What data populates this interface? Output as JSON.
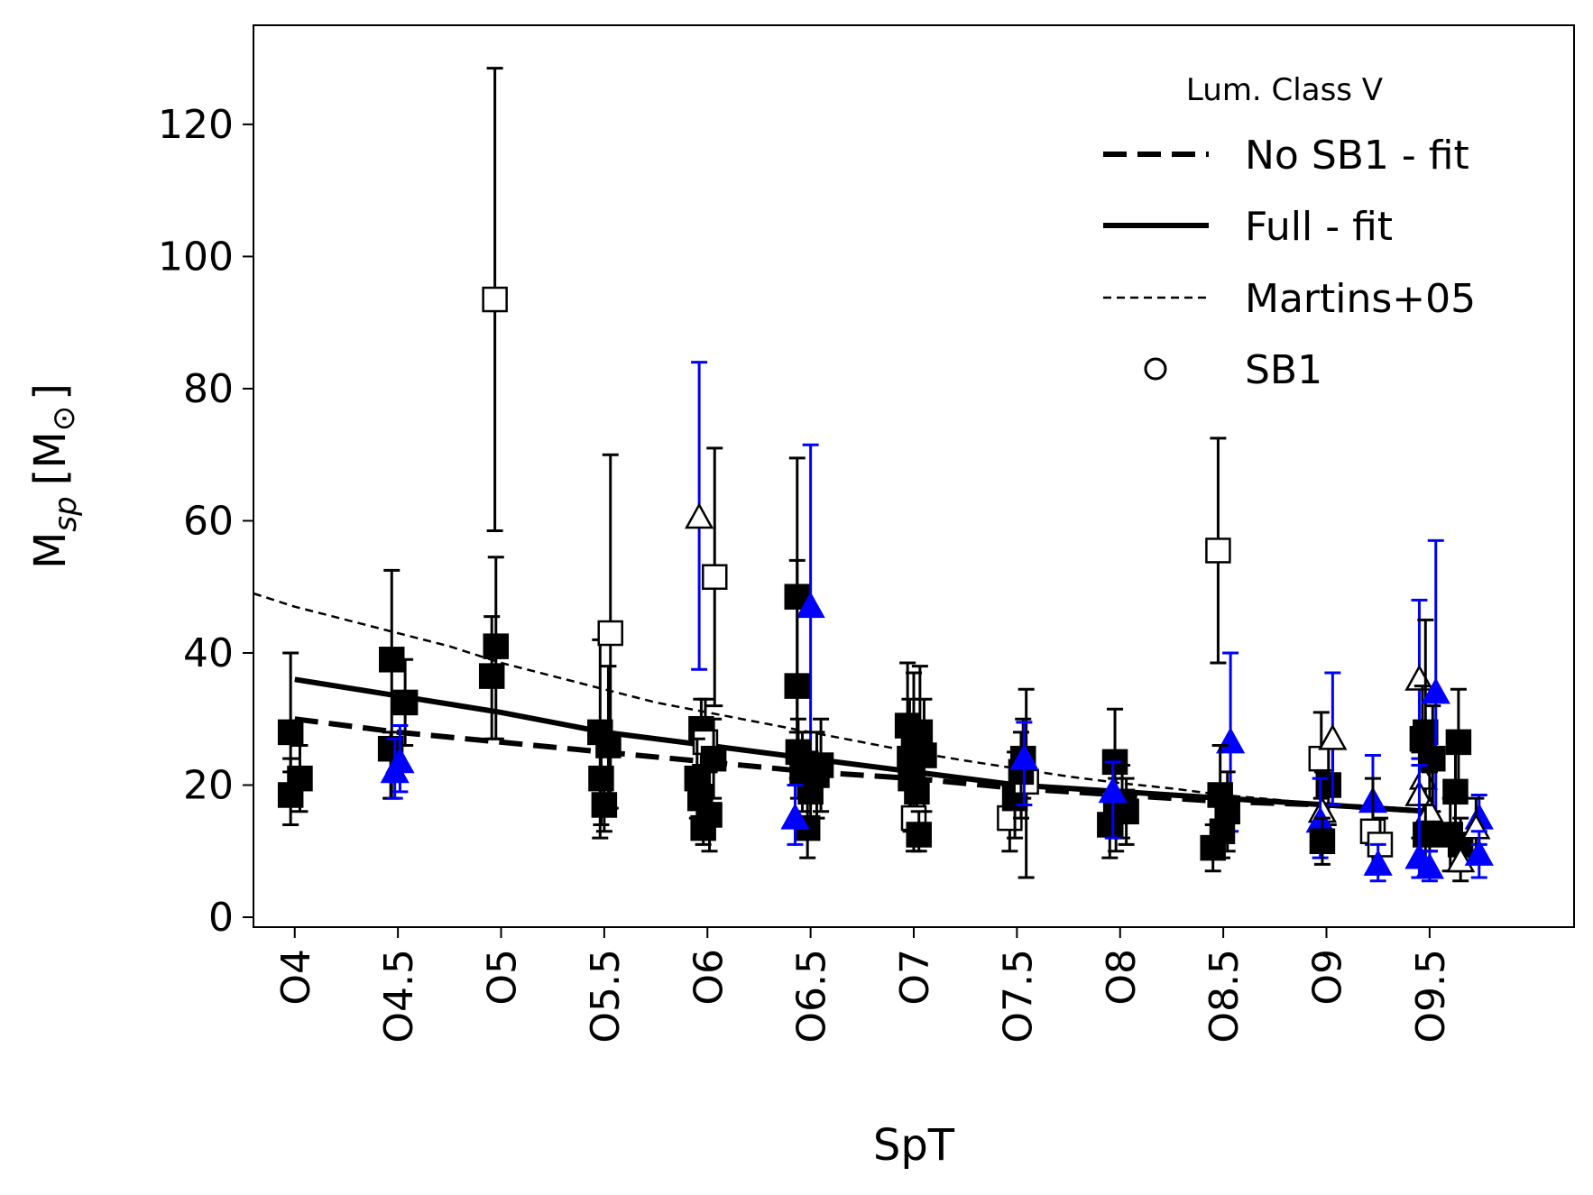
{
  "chart_data": {
    "type": "scatter",
    "xlabel": "SpT",
    "ylabel_main": "M",
    "ylabel_sub": "sp",
    "ylabel_unit_open": "[M",
    "ylabel_unit_sym": "⊙",
    "ylabel_unit_close": "]",
    "xlim": [
      -0.4,
      12.4
    ],
    "ylim": [
      -1.5,
      135
    ],
    "yticks": [
      0,
      20,
      40,
      60,
      80,
      100,
      120
    ],
    "ytick_labels": [
      "0",
      "20",
      "40",
      "60",
      "80",
      "100",
      "120"
    ],
    "xticks": [
      0,
      1,
      2,
      3,
      4,
      5,
      6,
      7,
      8,
      9,
      10,
      11
    ],
    "xtick_labels": [
      "O4",
      "O4.5",
      "O5",
      "O5.5",
      "O6",
      "O6.5",
      "O7",
      "O7.5",
      "O8",
      "O8.5",
      "O9",
      "O9.5"
    ],
    "legend": {
      "title": "Lum. Class V",
      "position": "upper right",
      "entries": [
        {
          "label": "No SB1 - fit",
          "style": "thick-dashed"
        },
        {
          "label": "Full - fit",
          "style": "thick-solid"
        },
        {
          "label": "Martins+05",
          "style": "thin-dashed"
        },
        {
          "label": "SB1",
          "style": "circle-marker"
        }
      ]
    },
    "colors": {
      "black": "#000000",
      "blue": "#0000ff",
      "white": "#ffffff"
    },
    "lines": [
      {
        "name": "No SB1 - fit",
        "style": "thick-dashed",
        "x": [
          0,
          1,
          2,
          3,
          4,
          5,
          6,
          7,
          8,
          9,
          10,
          11
        ],
        "y": [
          30,
          28,
          26.5,
          25,
          23.5,
          22,
          21,
          19.5,
          18.5,
          17.5,
          17,
          16
        ]
      },
      {
        "name": "Full - fit",
        "style": "thick-solid",
        "x": [
          0,
          1,
          2,
          3,
          4,
          5,
          6,
          7,
          8,
          9,
          10,
          11
        ],
        "y": [
          36,
          33.5,
          31,
          28,
          26,
          24,
          22,
          20,
          19,
          18,
          17,
          16
        ]
      },
      {
        "name": "Martins+05",
        "style": "thin-dashed",
        "x": [
          -0.4,
          0,
          0.5,
          1,
          1.5,
          2,
          2.5,
          3,
          3.5,
          4,
          4.5,
          5,
          5.5,
          6,
          6.5,
          7,
          7.5,
          8,
          8.5,
          9,
          9.5,
          10
        ],
        "y": [
          49,
          47,
          45,
          43,
          41,
          38.5,
          36.5,
          34.5,
          32.5,
          31,
          29.5,
          28,
          26.5,
          25,
          23.7,
          22.5,
          21.3,
          20.3,
          19.5,
          18.5,
          17.8,
          17
        ]
      }
    ],
    "points": [
      {
        "x": -0.04,
        "y": 28,
        "lo": 22,
        "hi": 40,
        "m": "square",
        "f": "black"
      },
      {
        "x": -0.04,
        "y": 18.5,
        "lo": 14,
        "hi": 24,
        "m": "square",
        "f": "black"
      },
      {
        "x": 0.05,
        "y": 21,
        "lo": 16,
        "hi": 26,
        "m": "square",
        "f": "black"
      },
      {
        "x": 0.94,
        "y": 39,
        "lo": 18,
        "hi": 52.5,
        "m": "square",
        "f": "black"
      },
      {
        "x": 0.93,
        "y": 25.5,
        "lo": 18,
        "hi": 28,
        "m": "square",
        "f": "black"
      },
      {
        "x": 1.07,
        "y": 32.5,
        "lo": 26,
        "hi": 39,
        "m": "square",
        "f": "black"
      },
      {
        "x": 0.97,
        "y": 22,
        "lo": 18,
        "hi": 27,
        "m": "triangle",
        "f": "blue"
      },
      {
        "x": 1.02,
        "y": 23.5,
        "lo": 19,
        "hi": 29,
        "m": "triangle",
        "f": "blue"
      },
      {
        "x": 1.94,
        "y": 93.5,
        "lo": 58.5,
        "hi": 128.5,
        "m": "square",
        "f": "white"
      },
      {
        "x": 1.95,
        "y": 41,
        "lo": 27,
        "hi": 54.5,
        "m": "square",
        "f": "black"
      },
      {
        "x": 1.91,
        "y": 36.5,
        "lo": 27,
        "hi": 45.5,
        "m": "square",
        "f": "black"
      },
      {
        "x": 2.96,
        "y": 28,
        "lo": 12,
        "hi": 42,
        "m": "square",
        "f": "black"
      },
      {
        "x": 2.97,
        "y": 21,
        "lo": 14,
        "hi": 27,
        "m": "square",
        "f": "black"
      },
      {
        "x": 3.04,
        "y": 26,
        "lo": 16,
        "hi": 38,
        "m": "square",
        "f": "black"
      },
      {
        "x": 3.06,
        "y": 43,
        "lo": 16.5,
        "hi": 70,
        "m": "square",
        "f": "white"
      },
      {
        "x": 3.0,
        "y": 17,
        "lo": 13,
        "hi": 22,
        "m": "square",
        "f": "black"
      },
      {
        "x": 3.92,
        "y": 60.5,
        "lo": 37.5,
        "hi": 84,
        "m": "triangle",
        "f": "white",
        "ec": "blue"
      },
      {
        "x": 4.07,
        "y": 51.5,
        "lo": 32,
        "hi": 71,
        "m": "square",
        "f": "white"
      },
      {
        "x": 3.94,
        "y": 28.5,
        "lo": 20,
        "hi": 33,
        "m": "square",
        "f": "black"
      },
      {
        "x": 3.98,
        "y": 26.5,
        "lo": 20,
        "hi": 33,
        "m": "square",
        "f": "white"
      },
      {
        "x": 3.9,
        "y": 21,
        "lo": 15,
        "hi": 27,
        "m": "square",
        "f": "black"
      },
      {
        "x": 3.93,
        "y": 18,
        "lo": 12,
        "hi": 23,
        "m": "square",
        "f": "black"
      },
      {
        "x": 4.02,
        "y": 15.5,
        "lo": 10,
        "hi": 22,
        "m": "square",
        "f": "black"
      },
      {
        "x": 3.96,
        "y": 13.5,
        "lo": 11,
        "hi": 18,
        "m": "square",
        "f": "black"
      },
      {
        "x": 4.06,
        "y": 24,
        "lo": 18,
        "hi": 30,
        "m": "square",
        "f": "black"
      },
      {
        "x": 4.87,
        "y": 48.5,
        "lo": 28,
        "hi": 69.5,
        "m": "square",
        "f": "black"
      },
      {
        "x": 5.0,
        "y": 47,
        "lo": 22,
        "hi": 71.5,
        "m": "triangle",
        "f": "blue"
      },
      {
        "x": 4.87,
        "y": 35,
        "lo": 21,
        "hi": 54,
        "m": "square",
        "f": "black"
      },
      {
        "x": 4.88,
        "y": 25,
        "lo": 18,
        "hi": 30,
        "m": "square",
        "f": "black"
      },
      {
        "x": 4.92,
        "y": 22,
        "lo": 16,
        "hi": 28,
        "m": "square",
        "f": "black"
      },
      {
        "x": 4.97,
        "y": 13.5,
        "lo": 9,
        "hi": 19,
        "m": "square",
        "f": "black"
      },
      {
        "x": 5.0,
        "y": 19,
        "lo": 13,
        "hi": 25,
        "m": "square",
        "f": "black"
      },
      {
        "x": 5.06,
        "y": 21.5,
        "lo": 15,
        "hi": 28,
        "m": "square",
        "f": "black"
      },
      {
        "x": 5.1,
        "y": 23,
        "lo": 16,
        "hi": 30,
        "m": "square",
        "f": "black"
      },
      {
        "x": 4.85,
        "y": 15,
        "lo": 11,
        "hi": 20,
        "m": "triangle",
        "f": "blue"
      },
      {
        "x": 5.94,
        "y": 29,
        "lo": 20,
        "hi": 38.5,
        "m": "square",
        "f": "black"
      },
      {
        "x": 6.0,
        "y": 26.5,
        "lo": 16,
        "hi": 37,
        "m": "square",
        "f": "black"
      },
      {
        "x": 6.06,
        "y": 28,
        "lo": 18,
        "hi": 38,
        "m": "square",
        "f": "black"
      },
      {
        "x": 5.96,
        "y": 24,
        "lo": 16,
        "hi": 33,
        "m": "square",
        "f": "black"
      },
      {
        "x": 6.1,
        "y": 24.5,
        "lo": 16,
        "hi": 33,
        "m": "square",
        "f": "black"
      },
      {
        "x": 5.97,
        "y": 21,
        "lo": 13,
        "hi": 29,
        "m": "square",
        "f": "black"
      },
      {
        "x": 6.03,
        "y": 19,
        "lo": 12,
        "hi": 26,
        "m": "square",
        "f": "black"
      },
      {
        "x": 6.0,
        "y": 15,
        "lo": 10,
        "hi": 20,
        "m": "square",
        "f": "white"
      },
      {
        "x": 6.05,
        "y": 12.5,
        "lo": 10,
        "hi": 16,
        "m": "square",
        "f": "black"
      },
      {
        "x": 6.93,
        "y": 15,
        "lo": 10,
        "hi": 20,
        "m": "square",
        "f": "white"
      },
      {
        "x": 6.98,
        "y": 18,
        "lo": 12,
        "hi": 25,
        "m": "square",
        "f": "black"
      },
      {
        "x": 7.06,
        "y": 24,
        "lo": 18,
        "hi": 30,
        "m": "square",
        "f": "black"
      },
      {
        "x": 7.09,
        "y": 20.5,
        "lo": 6,
        "hi": 34.5,
        "m": "square",
        "f": "white"
      },
      {
        "x": 7.04,
        "y": 22,
        "lo": 15,
        "hi": 28,
        "m": "square",
        "f": "black"
      },
      {
        "x": 7.07,
        "y": 24,
        "lo": 17,
        "hi": 29.5,
        "m": "triangle",
        "f": "blue"
      },
      {
        "x": 7.95,
        "y": 23.5,
        "lo": 16,
        "hi": 31.5,
        "m": "square",
        "f": "black"
      },
      {
        "x": 7.9,
        "y": 14,
        "lo": 9,
        "hi": 19,
        "m": "square",
        "f": "black"
      },
      {
        "x": 7.96,
        "y": 16,
        "lo": 10,
        "hi": 21,
        "m": "square",
        "f": "black"
      },
      {
        "x": 8.02,
        "y": 17.5,
        "lo": 12,
        "hi": 23,
        "m": "square",
        "f": "black"
      },
      {
        "x": 8.06,
        "y": 16,
        "lo": 11,
        "hi": 21,
        "m": "square",
        "f": "black"
      },
      {
        "x": 7.93,
        "y": 19,
        "lo": 12,
        "hi": 23.5,
        "m": "triangle",
        "f": "blue"
      },
      {
        "x": 8.95,
        "y": 55.5,
        "lo": 38.5,
        "hi": 72.5,
        "m": "square",
        "f": "white"
      },
      {
        "x": 9.07,
        "y": 26.5,
        "lo": 13,
        "hi": 40,
        "m": "triangle",
        "f": "blue"
      },
      {
        "x": 8.97,
        "y": 18.5,
        "lo": 12,
        "hi": 26,
        "m": "square",
        "f": "black"
      },
      {
        "x": 9.04,
        "y": 16,
        "lo": 10,
        "hi": 22,
        "m": "square",
        "f": "black"
      },
      {
        "x": 8.9,
        "y": 10.5,
        "lo": 7,
        "hi": 14,
        "m": "square",
        "f": "black"
      },
      {
        "x": 8.99,
        "y": 13,
        "lo": 9,
        "hi": 17,
        "m": "square",
        "f": "black"
      },
      {
        "x": 9.95,
        "y": 24,
        "lo": 18,
        "hi": 31,
        "m": "square",
        "f": "white"
      },
      {
        "x": 10.02,
        "y": 20,
        "lo": 14,
        "hi": 26,
        "m": "square",
        "f": "black"
      },
      {
        "x": 10.06,
        "y": 27,
        "lo": 17,
        "hi": 37,
        "m": "triangle",
        "f": "white",
        "ec": "blue"
      },
      {
        "x": 9.96,
        "y": 16,
        "lo": 10,
        "hi": 22,
        "m": "triangle",
        "f": "white"
      },
      {
        "x": 9.94,
        "y": 14.5,
        "lo": 9,
        "hi": 21,
        "m": "triangle",
        "f": "blue"
      },
      {
        "x": 9.96,
        "y": 11.5,
        "lo": 8,
        "hi": 15,
        "m": "square",
        "f": "black"
      },
      {
        "x": 10.45,
        "y": 17.5,
        "lo": 11,
        "hi": 24.5,
        "m": "triangle",
        "f": "blue"
      },
      {
        "x": 10.45,
        "y": 13,
        "lo": 6.5,
        "hi": 21,
        "m": "square",
        "f": "white"
      },
      {
        "x": 10.52,
        "y": 11,
        "lo": 7,
        "hi": 15,
        "m": "square",
        "f": "white"
      },
      {
        "x": 10.5,
        "y": 8,
        "lo": 5.5,
        "hi": 11,
        "m": "triangle",
        "f": "blue"
      },
      {
        "x": 10.9,
        "y": 36,
        "lo": 24,
        "hi": 48,
        "m": "triangle",
        "f": "white",
        "ec": "blue"
      },
      {
        "x": 10.96,
        "y": 28,
        "lo": 18,
        "hi": 45,
        "m": "square",
        "f": "black"
      },
      {
        "x": 10.93,
        "y": 27,
        "lo": 18,
        "hi": 35,
        "m": "square",
        "f": "black"
      },
      {
        "x": 10.94,
        "y": 21,
        "lo": 14,
        "hi": 28,
        "m": "triangle",
        "f": "white"
      },
      {
        "x": 10.9,
        "y": 18.5,
        "lo": 12,
        "hi": 25,
        "m": "triangle",
        "f": "white"
      },
      {
        "x": 11.06,
        "y": 34,
        "lo": 11,
        "hi": 57,
        "m": "triangle",
        "f": "blue"
      },
      {
        "x": 11.03,
        "y": 24,
        "lo": 16,
        "hi": 32,
        "m": "square",
        "f": "black"
      },
      {
        "x": 11.0,
        "y": 16,
        "lo": 10,
        "hi": 22,
        "m": "triangle",
        "f": "white"
      },
      {
        "x": 10.96,
        "y": 12.5,
        "lo": 8,
        "hi": 17,
        "m": "square",
        "f": "black"
      },
      {
        "x": 10.9,
        "y": 9,
        "lo": 6,
        "hi": 23,
        "m": "triangle",
        "f": "blue"
      },
      {
        "x": 11.0,
        "y": 7.5,
        "lo": 5.5,
        "hi": 10,
        "m": "triangle",
        "f": "blue"
      },
      {
        "x": 11.28,
        "y": 26.5,
        "lo": 18,
        "hi": 34.5,
        "m": "square",
        "f": "black"
      },
      {
        "x": 11.25,
        "y": 19,
        "lo": 12,
        "hi": 26,
        "m": "square",
        "f": "black"
      },
      {
        "x": 11.2,
        "y": 12.5,
        "lo": 7,
        "hi": 18,
        "m": "square",
        "f": "black"
      },
      {
        "x": 11.3,
        "y": 11,
        "lo": 7,
        "hi": 15,
        "m": "square",
        "f": "black"
      },
      {
        "x": 11.3,
        "y": 8.5,
        "lo": 5.5,
        "hi": 12,
        "m": "triangle",
        "f": "white"
      },
      {
        "x": 11.48,
        "y": 15,
        "lo": 11,
        "hi": 18.5,
        "m": "triangle",
        "f": "blue"
      },
      {
        "x": 11.45,
        "y": 13.5,
        "lo": 9,
        "hi": 18,
        "m": "triangle",
        "f": "white"
      },
      {
        "x": 11.48,
        "y": 9.5,
        "lo": 6,
        "hi": 13,
        "m": "triangle",
        "f": "blue"
      }
    ]
  }
}
